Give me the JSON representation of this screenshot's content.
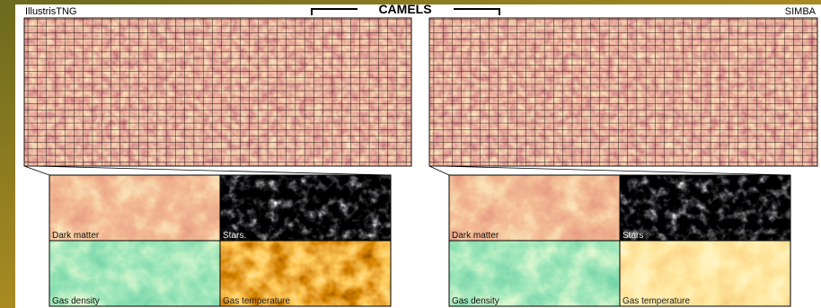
{
  "header": {
    "title": "CAMELS"
  },
  "simulations": [
    {
      "name": "IllustrisTNG",
      "panels": [
        "Dark matter",
        "Stars.",
        "Gas density",
        "Gas temperature"
      ]
    },
    {
      "name": "SIMBA",
      "panels": [
        "Dark matter",
        "Stars",
        "Gas density",
        "Gas temperature"
      ]
    }
  ]
}
